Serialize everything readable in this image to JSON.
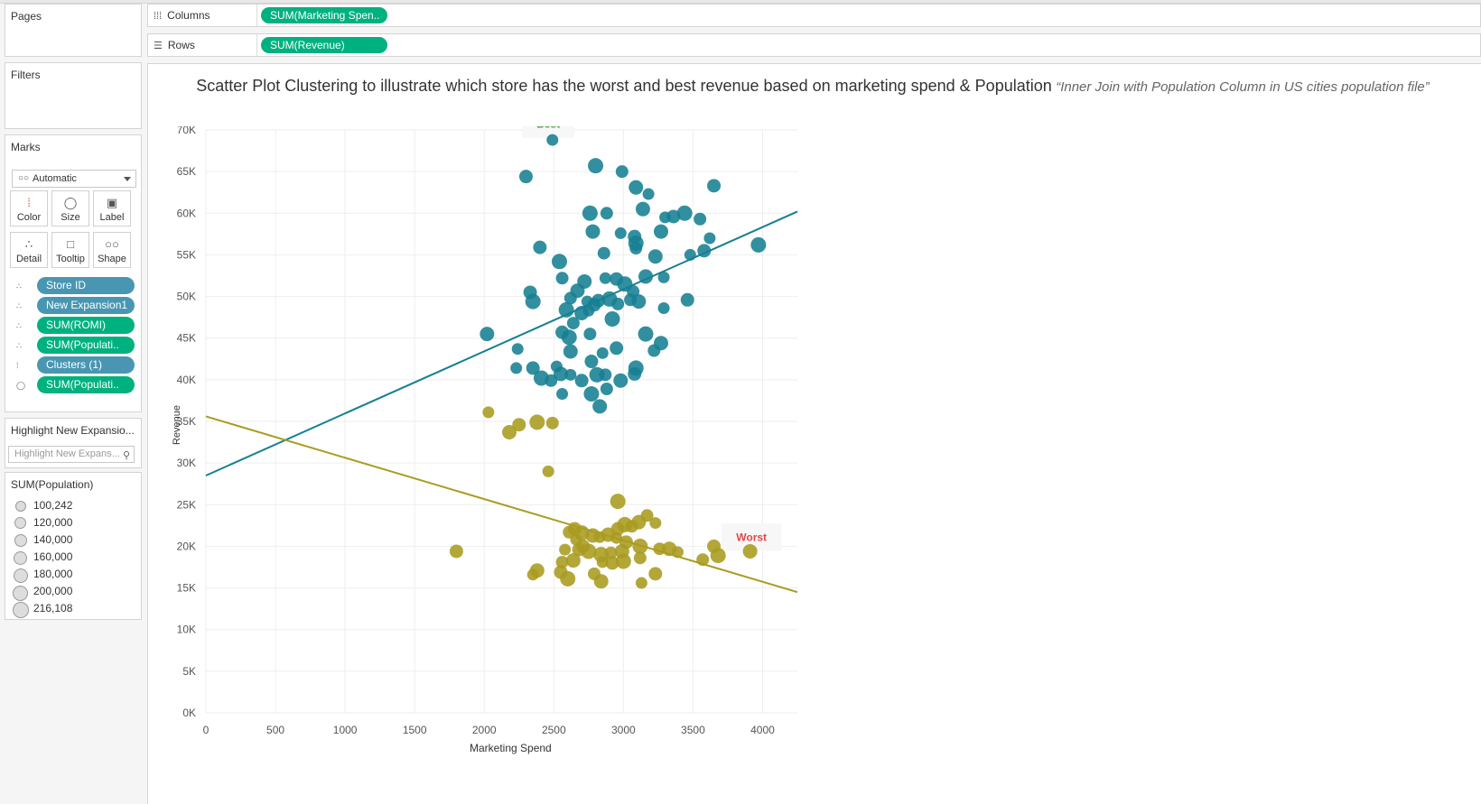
{
  "shelves": {
    "columns_label": "Columns",
    "columns_pill": "SUM(Marketing Spen..",
    "rows_label": "Rows",
    "rows_pill": "SUM(Revenue)"
  },
  "panels": {
    "pages": "Pages",
    "filters": "Filters",
    "marks": "Marks",
    "mark_type": "Automatic",
    "buttons": [
      "Color",
      "Size",
      "Label",
      "Detail",
      "Tooltip",
      "Shape"
    ],
    "pills": [
      "Store ID",
      "New Expansion1",
      "SUM(ROMI)",
      "SUM(Populati..",
      "Clusters (1)",
      "SUM(Populati.."
    ],
    "highlight_title": "Highlight New Expansio...",
    "highlight_placeholder": "Highlight New Expans...",
    "legend_title": "SUM(Population)",
    "legend_items": [
      "100,242",
      "120,000",
      "140,000",
      "160,000",
      "180,000",
      "200,000",
      "216,108"
    ]
  },
  "colors": {
    "cluster_best": "#167f92",
    "cluster_worst": "#a99b1f",
    "pill_blue": "#4996b2",
    "pill_green": "#00b180",
    "best_label": "#4a9a44",
    "worst_label": "#e04848"
  },
  "chart_data": {
    "type": "scatter",
    "title": "Scatter Plot Clustering  to illustrate which store has the worst and best revenue based on marketing spend & Population",
    "subtitle": "“Inner Join with Population Column in US cities population file”",
    "xlabel": "Marketing Spend",
    "ylabel": "Revenue",
    "xlim": [
      0,
      4250
    ],
    "ylim": [
      0,
      70000
    ],
    "x_ticks": [
      0,
      500,
      1000,
      1500,
      2000,
      2500,
      3000,
      3500,
      4000
    ],
    "x_tick_labels": [
      "0",
      "500",
      "1000",
      "1500",
      "2000",
      "2500",
      "3000",
      "3500",
      "4000"
    ],
    "y_ticks": [
      0,
      5000,
      10000,
      15000,
      20000,
      25000,
      30000,
      35000,
      40000,
      45000,
      50000,
      55000,
      60000,
      65000,
      70000
    ],
    "y_tick_labels": [
      "0K",
      "5K",
      "10K",
      "15K",
      "20K",
      "25K",
      "30K",
      "35K",
      "40K",
      "45K",
      "50K",
      "55K",
      "60K",
      "65K",
      "70K"
    ],
    "grid": true,
    "annotations": [
      {
        "text": "Best",
        "x": 2460,
        "y": 70700
      },
      {
        "text": "Worst",
        "x": 3920,
        "y": 21100
      }
    ],
    "series": [
      {
        "points": [
          [
            2490,
            68800
          ],
          [
            2300,
            64400
          ],
          [
            2800,
            65700
          ],
          [
            2990,
            65000
          ],
          [
            3090,
            63100
          ],
          [
            3180,
            62300
          ],
          [
            3650,
            63300
          ],
          [
            2760,
            60000
          ],
          [
            2880,
            60000
          ],
          [
            3140,
            60500
          ],
          [
            3300,
            59500
          ],
          [
            3360,
            59600
          ],
          [
            3440,
            60000
          ],
          [
            3550,
            59300
          ],
          [
            2780,
            57800
          ],
          [
            2980,
            57600
          ],
          [
            3080,
            57200
          ],
          [
            3090,
            56400
          ],
          [
            3090,
            55800
          ],
          [
            3270,
            57800
          ],
          [
            3620,
            57000
          ],
          [
            2400,
            55900
          ],
          [
            2540,
            54200
          ],
          [
            2860,
            55200
          ],
          [
            3230,
            54800
          ],
          [
            3480,
            55000
          ],
          [
            3580,
            55500
          ],
          [
            3970,
            56200
          ],
          [
            2560,
            52200
          ],
          [
            2720,
            51800
          ],
          [
            2870,
            52200
          ],
          [
            2950,
            52100
          ],
          [
            3010,
            51500
          ],
          [
            3070,
            50600
          ],
          [
            3160,
            52400
          ],
          [
            3290,
            52300
          ],
          [
            2330,
            50500
          ],
          [
            2350,
            49400
          ],
          [
            2620,
            49800
          ],
          [
            2670,
            50700
          ],
          [
            2740,
            49400
          ],
          [
            2820,
            49500
          ],
          [
            2900,
            49700
          ],
          [
            2960,
            49100
          ],
          [
            3110,
            49400
          ],
          [
            3290,
            48600
          ],
          [
            3460,
            49600
          ],
          [
            2590,
            48400
          ],
          [
            2640,
            46800
          ],
          [
            2700,
            48000
          ],
          [
            2750,
            48300
          ],
          [
            2790,
            49000
          ],
          [
            2920,
            47300
          ],
          [
            3050,
            49600
          ],
          [
            2020,
            45500
          ],
          [
            2240,
            43700
          ],
          [
            2560,
            45700
          ],
          [
            2610,
            45100
          ],
          [
            2760,
            45500
          ],
          [
            2620,
            43400
          ],
          [
            2850,
            43200
          ],
          [
            2950,
            43800
          ],
          [
            3160,
            45500
          ],
          [
            3220,
            43500
          ],
          [
            3270,
            44400
          ],
          [
            2520,
            41600
          ],
          [
            2770,
            42200
          ],
          [
            2810,
            40600
          ],
          [
            2870,
            40600
          ],
          [
            2980,
            39900
          ],
          [
            2230,
            41400
          ],
          [
            2350,
            41400
          ],
          [
            2410,
            40200
          ],
          [
            2480,
            39900
          ],
          [
            2550,
            40700
          ],
          [
            2620,
            40600
          ],
          [
            2700,
            39900
          ],
          [
            2770,
            38300
          ],
          [
            2880,
            38900
          ],
          [
            2830,
            36800
          ],
          [
            2560,
            38300
          ],
          [
            3080,
            40700
          ],
          [
            3090,
            41400
          ]
        ]
      },
      {
        "points": [
          [
            2030,
            36100
          ],
          [
            2250,
            34600
          ],
          [
            2380,
            34900
          ],
          [
            2490,
            34800
          ],
          [
            2180,
            33700
          ],
          [
            2460,
            29000
          ],
          [
            1800,
            19400
          ],
          [
            2960,
            25400
          ],
          [
            3170,
            23700
          ],
          [
            3110,
            22900
          ],
          [
            3230,
            22800
          ],
          [
            2650,
            22100
          ],
          [
            2700,
            21600
          ],
          [
            2610,
            21700
          ],
          [
            2780,
            21300
          ],
          [
            2830,
            21100
          ],
          [
            2960,
            22100
          ],
          [
            3010,
            22600
          ],
          [
            3060,
            22400
          ],
          [
            2890,
            21400
          ],
          [
            2950,
            21000
          ],
          [
            3020,
            20500
          ],
          [
            3120,
            20000
          ],
          [
            3260,
            19700
          ],
          [
            3330,
            19700
          ],
          [
            3390,
            19300
          ],
          [
            3650,
            20000
          ],
          [
            3680,
            18900
          ],
          [
            3570,
            18400
          ],
          [
            3910,
            19400
          ],
          [
            2580,
            19600
          ],
          [
            2680,
            19600
          ],
          [
            2750,
            19400
          ],
          [
            2910,
            19200
          ],
          [
            2990,
            19400
          ],
          [
            2660,
            20800
          ],
          [
            2710,
            20000
          ],
          [
            2840,
            19000
          ],
          [
            2560,
            18100
          ],
          [
            2640,
            18300
          ],
          [
            2850,
            18100
          ],
          [
            2920,
            18000
          ],
          [
            3000,
            18200
          ],
          [
            3120,
            18600
          ],
          [
            2380,
            17100
          ],
          [
            2350,
            16600
          ],
          [
            2550,
            16900
          ],
          [
            2600,
            16100
          ],
          [
            2790,
            16700
          ],
          [
            2840,
            15800
          ],
          [
            3130,
            15600
          ],
          [
            3230,
            16700
          ]
        ]
      }
    ],
    "trend_lines": [
      {
        "x": [
          0,
          4250
        ],
        "y": [
          28500,
          60200
        ]
      },
      {
        "x": [
          0,
          4250
        ],
        "y": [
          35600,
          14500
        ]
      }
    ]
  }
}
